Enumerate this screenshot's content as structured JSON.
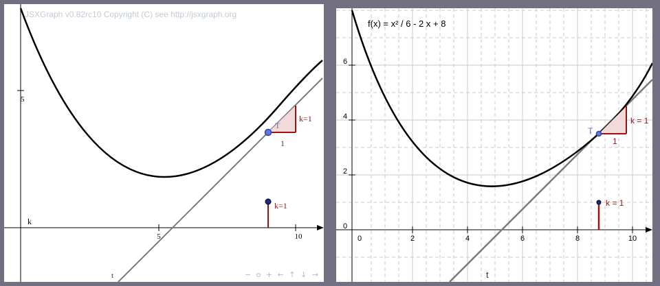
{
  "left_board": {
    "copyright": "JSXGraph v0.82rc10 Copyright (C) see http://jsxgraph.org",
    "x_tick_labels": [
      "5",
      "10"
    ],
    "y_tick_labels": [
      "5"
    ],
    "tangent_label": "t",
    "point_label": "T",
    "axis_point_label": "k",
    "slope_run_label": "1",
    "slope_rise_label": "k=1",
    "slope_marker_label": "k=1",
    "navbar": [
      "−",
      "o",
      "+",
      "←",
      "↑",
      "↓",
      "→"
    ]
  },
  "right_board": {
    "function_label": "f(x) = x² / 6 - 2 x + 8",
    "x_tick_labels": [
      "0",
      "2",
      "4",
      "6",
      "8",
      "10"
    ],
    "y_tick_labels": [
      "0",
      "2",
      "4",
      "6"
    ],
    "tangent_label": "t",
    "point_label": "T",
    "slope_run_label": "1",
    "slope_rise_label": "k = 1",
    "slope_marker_label": "k = 1"
  },
  "colors": {
    "curve": "#000000",
    "tangent": "#7a7a7a",
    "slope_triangle_fill": "#f3dada",
    "slope_triangle_stroke": "#a01010",
    "point_fill": "#6677dd",
    "point_stroke": "#3344aa",
    "label_dark_red": "#8b1a1a",
    "grid": "#c8c8c8"
  }
}
